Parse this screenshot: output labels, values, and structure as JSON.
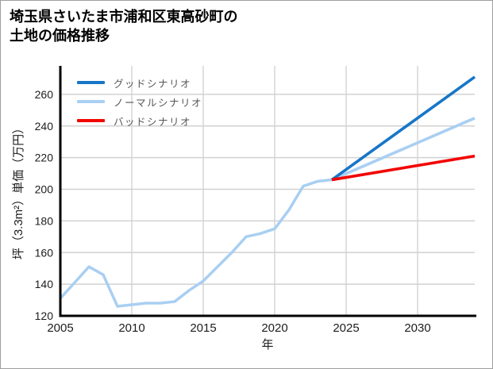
{
  "title": {
    "line1": "埼玉県さいたま市浦和区東高砂町の",
    "line2": "土地の価格推移"
  },
  "colors": {
    "good": "#1776c8",
    "normal": "#a9cff2",
    "bad": "#f20400",
    "grid": "#d2d2d2",
    "spine": "#000000",
    "legend_text": "#555555"
  },
  "chart_data": {
    "type": "line",
    "title": "埼玉県さいたま市浦和区東高砂町の土地の価格推移",
    "xlabel": "年",
    "ylabel": "坪（3.3m²）単価（万円）",
    "xlim": [
      2005,
      2034
    ],
    "ylim": [
      120,
      278
    ],
    "x_ticks": [
      2005,
      2010,
      2015,
      2020,
      2025,
      2030
    ],
    "y_ticks": [
      120,
      140,
      160,
      180,
      200,
      220,
      240,
      260
    ],
    "grid": true,
    "legend_position": "top-left",
    "historical": {
      "color": "#a9cff2",
      "x": [
        2005,
        2006,
        2007,
        2008,
        2009,
        2010,
        2011,
        2012,
        2013,
        2014,
        2015,
        2016,
        2017,
        2018,
        2019,
        2020,
        2021,
        2022,
        2023,
        2024
      ],
      "values": [
        131,
        141,
        151,
        146,
        126,
        127,
        128,
        128,
        129,
        136,
        142,
        151,
        160,
        170,
        172,
        175,
        187,
        202,
        205,
        206
      ]
    },
    "series": [
      {
        "name": "グッドシナリオ",
        "color": "#1776c8",
        "x": [
          2024,
          2034
        ],
        "values": [
          206,
          271
        ]
      },
      {
        "name": "ノーマルシナリオ",
        "color": "#a9cff2",
        "x": [
          2024,
          2034
        ],
        "values": [
          206,
          245
        ]
      },
      {
        "name": "バッドシナリオ",
        "color": "#f20400",
        "x": [
          2024,
          2034
        ],
        "values": [
          206,
          221
        ]
      }
    ]
  }
}
